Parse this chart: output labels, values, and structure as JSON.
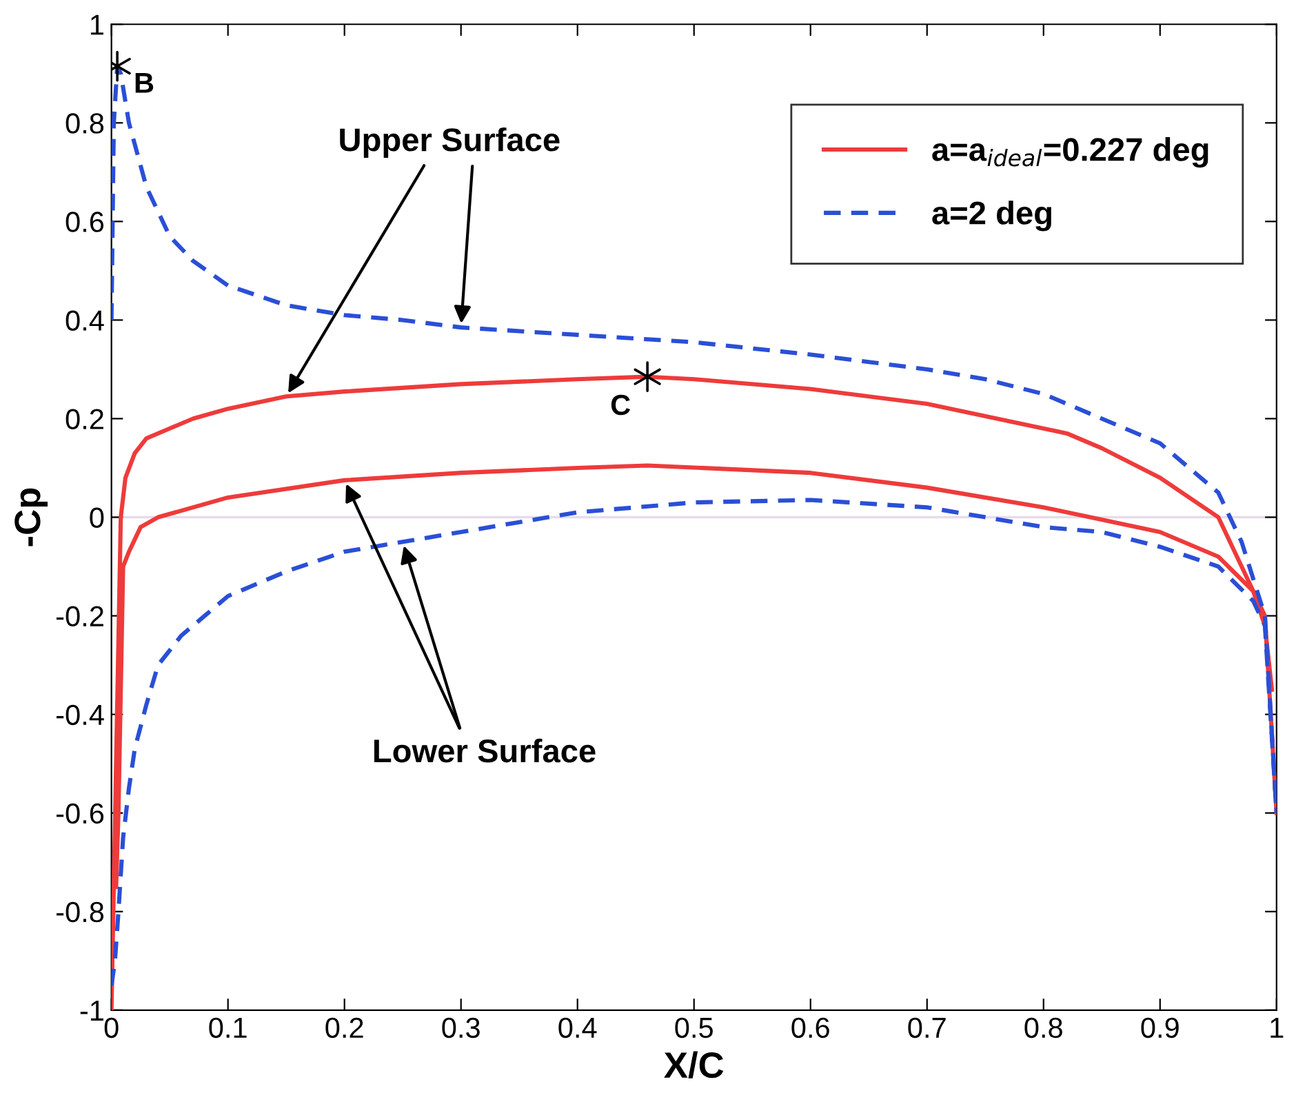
{
  "chart_data": {
    "type": "line",
    "xlabel": "X/C",
    "ylabel": "-Cp",
    "xlim": [
      0,
      1
    ],
    "ylim": [
      -1,
      1
    ],
    "xticks": [
      0,
      0.1,
      0.2,
      0.3,
      0.4,
      0.5,
      0.6,
      0.7,
      0.8,
      0.9,
      1
    ],
    "yticks": [
      -1,
      -0.8,
      -0.6,
      -0.4,
      -0.2,
      0,
      0.2,
      0.4,
      0.6,
      0.8,
      1
    ],
    "grid": false,
    "legend": "top right",
    "ref_lines": [
      {
        "axis": "y",
        "value": 0,
        "color": "#e6dcea"
      }
    ],
    "series": [
      {
        "name": "a=a$_{ideal}$=0.227 deg",
        "color": "#ee3b3b",
        "line_style": "solid",
        "x": [
          0.0,
          0.004,
          0.008,
          0.012,
          0.02,
          0.03,
          0.05,
          0.07,
          0.1,
          0.15,
          0.2,
          0.3,
          0.4,
          0.46,
          0.5,
          0.6,
          0.7,
          0.82,
          0.85,
          0.9,
          0.95,
          0.97,
          0.99,
          1.0
        ],
        "values": [
          -1.0,
          -0.5,
          0.0,
          0.08,
          0.13,
          0.16,
          0.18,
          0.2,
          0.22,
          0.245,
          0.255,
          0.27,
          0.28,
          0.285,
          0.28,
          0.26,
          0.23,
          0.17,
          0.14,
          0.08,
          0.0,
          -0.1,
          -0.2,
          -0.6
        ]
      },
      {
        "color": "#ee3b3b",
        "line_style": "solid",
        "x": [
          0.004,
          0.006,
          0.01,
          0.015,
          0.025,
          0.04,
          0.1,
          0.2,
          0.3,
          0.4,
          0.46,
          0.6,
          0.7,
          0.8,
          0.84,
          0.9,
          0.95,
          0.98,
          0.99,
          0.996
        ],
        "values": [
          -0.75,
          -0.6,
          -0.1,
          -0.07,
          -0.02,
          0.0,
          0.04,
          0.075,
          0.09,
          0.1,
          0.105,
          0.09,
          0.06,
          0.02,
          0.0,
          -0.03,
          -0.08,
          -0.15,
          -0.22,
          -0.35
        ]
      },
      {
        "name": "a=2 deg",
        "color": "#2a4fd6",
        "line_style": "dashed",
        "x": [
          0.0,
          0.002,
          0.005,
          0.008,
          0.015,
          0.03,
          0.05,
          0.07,
          0.1,
          0.15,
          0.2,
          0.25,
          0.3,
          0.4,
          0.5,
          0.6,
          0.7,
          0.75,
          0.8,
          0.85,
          0.9,
          0.95,
          0.97,
          0.99,
          1.0
        ],
        "values": [
          0.4,
          0.8,
          0.915,
          0.9,
          0.8,
          0.67,
          0.57,
          0.52,
          0.47,
          0.43,
          0.41,
          0.4,
          0.385,
          0.37,
          0.355,
          0.33,
          0.3,
          0.28,
          0.25,
          0.2,
          0.15,
          0.05,
          -0.05,
          -0.2,
          -0.6
        ]
      },
      {
        "color": "#2a4fd6",
        "line_style": "dashed",
        "x": [
          0.0,
          0.003,
          0.006,
          0.01,
          0.015,
          0.02,
          0.03,
          0.04,
          0.06,
          0.08,
          0.1,
          0.15,
          0.2,
          0.25,
          0.3,
          0.35,
          0.4,
          0.5,
          0.6,
          0.7,
          0.8,
          0.85,
          0.9,
          0.95,
          0.98,
          0.99,
          1.0
        ],
        "values": [
          -0.95,
          -0.9,
          -0.8,
          -0.65,
          -0.55,
          -0.47,
          -0.38,
          -0.3,
          -0.24,
          -0.2,
          -0.16,
          -0.11,
          -0.07,
          -0.05,
          -0.03,
          -0.01,
          0.01,
          0.03,
          0.035,
          0.02,
          -0.02,
          -0.03,
          -0.06,
          -0.1,
          -0.17,
          -0.22,
          -0.6
        ]
      },
      {
        "type": "scatter",
        "color": "#000000",
        "marker": "cross",
        "x": [
          0.005,
          0.46
        ],
        "values": [
          0.915,
          0.285
        ]
      }
    ],
    "annotations": [
      {
        "text": "B",
        "x": 0.005,
        "y": 0.915
      },
      {
        "text": "C",
        "x": 0.46,
        "y": 0.285
      },
      {
        "text": "Upper Surface",
        "x": 0.15,
        "y": 0.245
      },
      {
        "text": "Lower Surface",
        "x": 0.2,
        "y": 0.075
      }
    ]
  }
}
